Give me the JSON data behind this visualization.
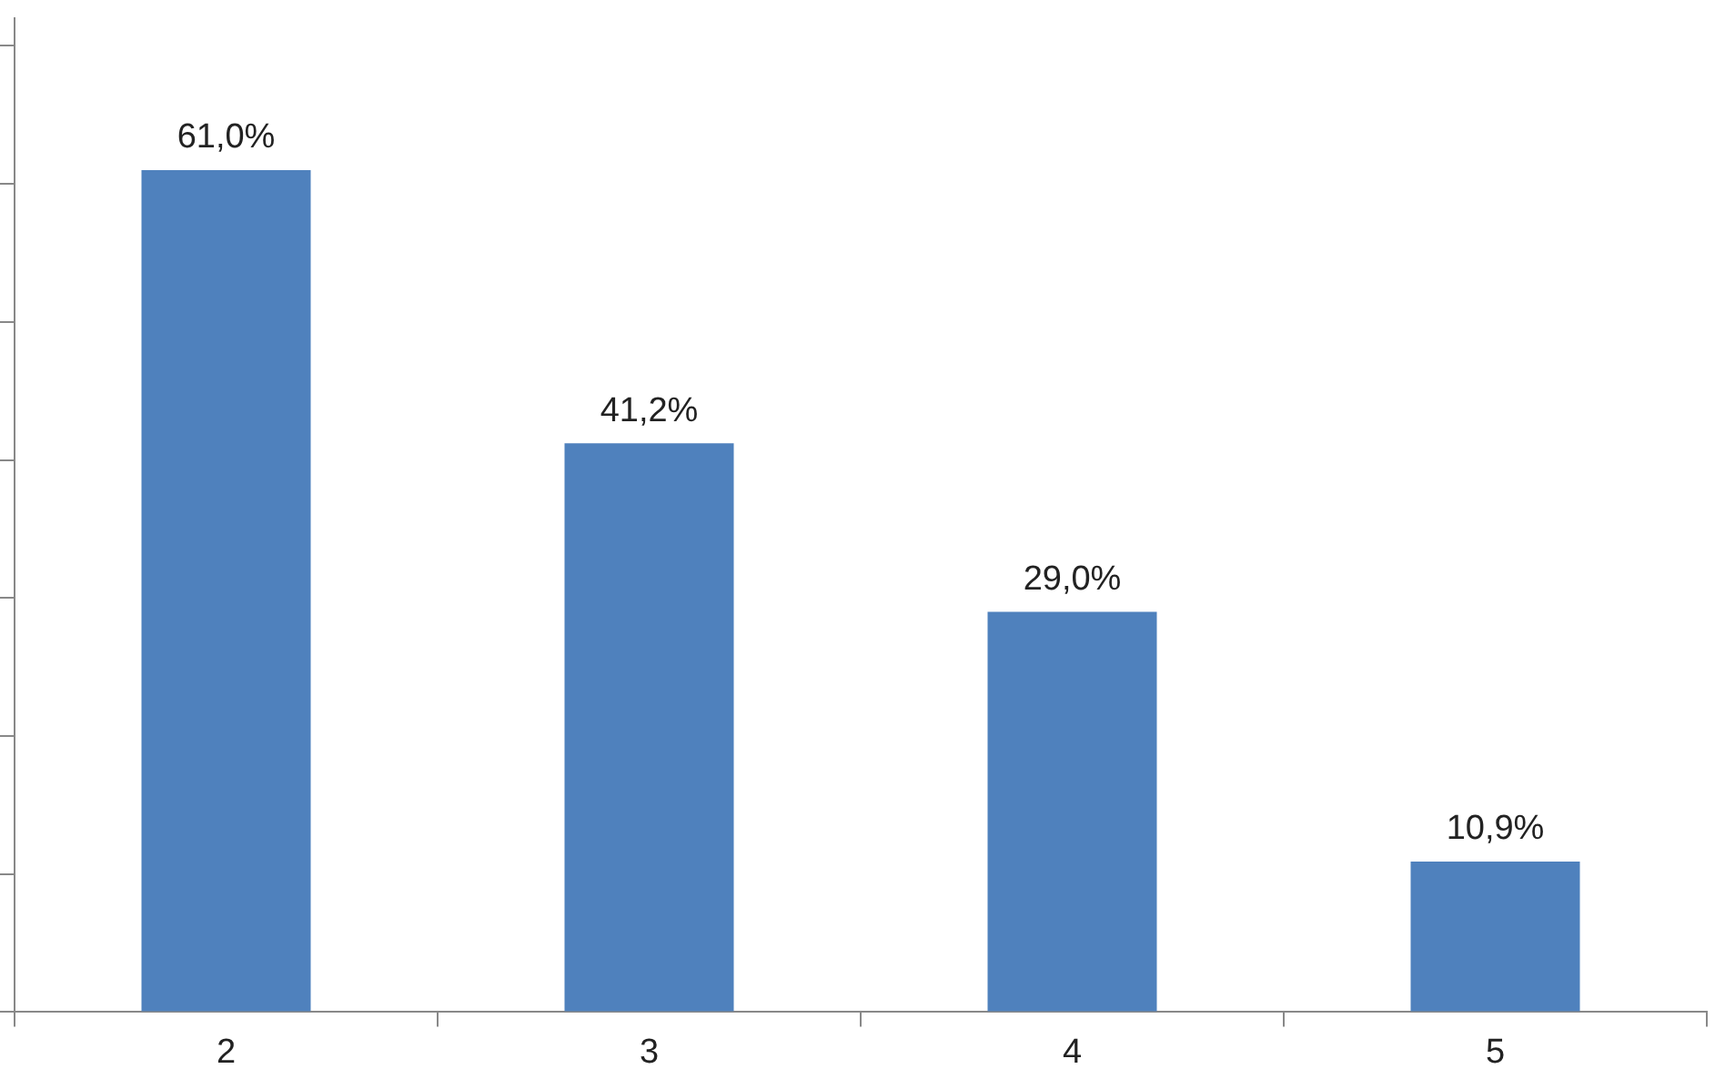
{
  "chart_data": {
    "type": "bar",
    "categories": [
      "2",
      "3",
      "4",
      "5"
    ],
    "values": [
      61.0,
      41.2,
      29.0,
      10.9
    ],
    "value_labels": [
      "61,0%",
      "41,2%",
      "29,0%",
      "10,9%"
    ],
    "color": "#4f81bd",
    "ylim": [
      0,
      72
    ],
    "yticks": [
      {
        "value": 0,
        "label": null
      },
      {
        "value": 10,
        "label": null
      },
      {
        "value": 20,
        "label": null
      },
      {
        "value": 30,
        "label": null
      },
      {
        "value": 40,
        "label": null
      },
      {
        "value": 50,
        "label": null
      },
      {
        "value": 60,
        "label": null
      },
      {
        "value": 70,
        "label": null
      }
    ],
    "tick_labels": "x",
    "grid": false,
    "legend": false
  }
}
